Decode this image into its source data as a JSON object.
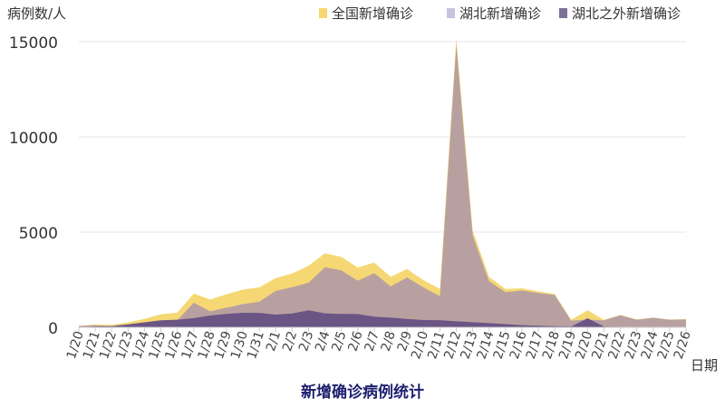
{
  "chart_data": {
    "type": "area",
    "title": "新增确诊病例统计",
    "xlabel": "日期",
    "ylabel": "病例数/人",
    "ylim": [
      0,
      15000
    ],
    "yticks": [
      0,
      5000,
      10000,
      15000
    ],
    "grid": true,
    "legend_position": "top-right",
    "categories": [
      "1/20",
      "1/21",
      "1/22",
      "1/23",
      "1/24",
      "1/25",
      "1/26",
      "1/27",
      "1/28",
      "1/29",
      "1/30",
      "1/31",
      "2/1",
      "2/2",
      "2/3",
      "2/4",
      "2/5",
      "2/6",
      "2/7",
      "2/8",
      "2/9",
      "2/10",
      "2/11",
      "2/12",
      "2/13",
      "2/14",
      "2/15",
      "2/16",
      "2/17",
      "2/18",
      "2/19",
      "2/20",
      "2/21",
      "2/22",
      "2/23",
      "2/24",
      "2/25",
      "2/26"
    ],
    "series": [
      {
        "name": "全国新增确诊",
        "color": "#f5d873",
        "values": [
          77,
          149,
          131,
          259,
          444,
          688,
          769,
          1771,
          1459,
          1737,
          1982,
          2102,
          2590,
          2829,
          3235,
          3887,
          3694,
          3143,
          3399,
          2656,
          3062,
          2478,
          2015,
          15152,
          5090,
          2641,
          2009,
          2048,
          1886,
          1749,
          394,
          889,
          397,
          648,
          409,
          508,
          406,
          433
        ]
      },
      {
        "name": "湖北新增确诊",
        "color": "#b9a0a0",
        "values": [
          72,
          105,
          69,
          105,
          180,
          323,
          371,
          1291,
          840,
          1032,
          1220,
          1347,
          1921,
          2103,
          2345,
          3156,
          2987,
          2447,
          2841,
          2147,
          2618,
          2097,
          1638,
          14840,
          4823,
          2420,
          1843,
          1933,
          1807,
          1693,
          349,
          411,
          366,
          630,
          398,
          499,
          401,
          409
        ]
      },
      {
        "name": "湖北之外新增确诊",
        "color": "#6a5585",
        "values": [
          5,
          44,
          62,
          154,
          264,
          365,
          398,
          480,
          619,
          705,
          762,
          755,
          669,
          726,
          890,
          731,
          707,
          696,
          558,
          509,
          444,
          381,
          377,
          312,
          267,
          221,
          166,
          115,
          79,
          56,
          45,
          478,
          31,
          18,
          11,
          9,
          5,
          24
        ]
      }
    ],
    "legend_colors": [
      "#f5d873",
      "#c6c2e0",
      "#7b7198"
    ]
  }
}
